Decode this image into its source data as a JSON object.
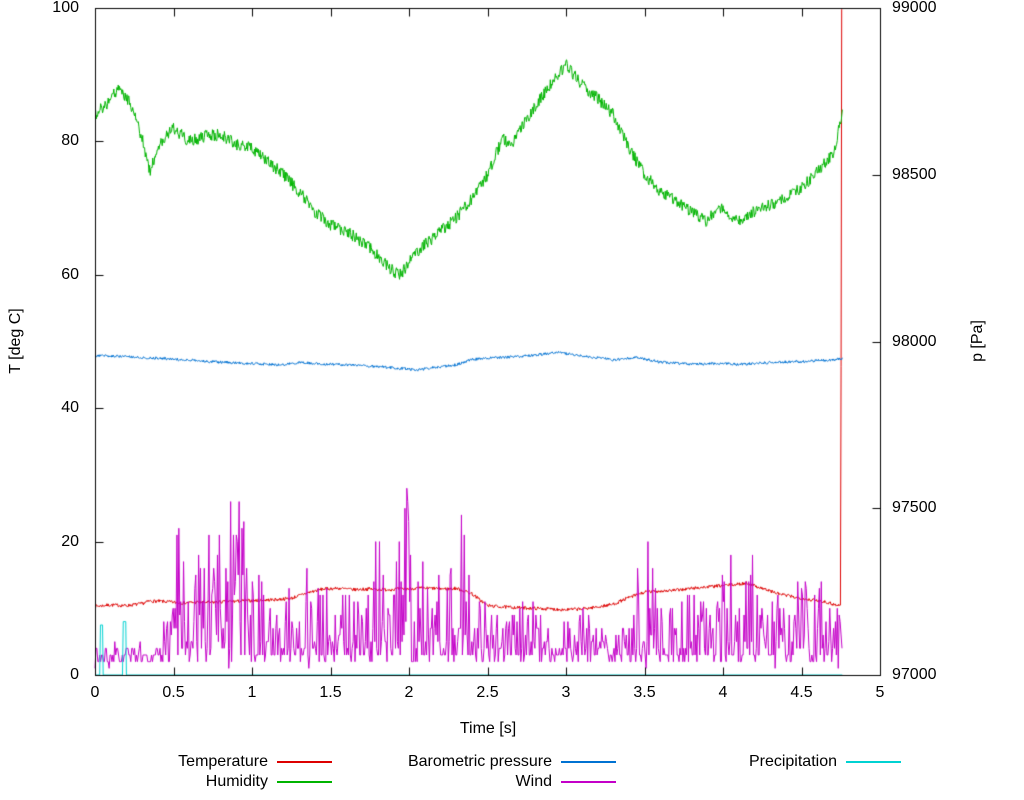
{
  "chart_data": {
    "type": "line",
    "title": "",
    "xlabel": "Time [s]",
    "ylabel": "T [deg C]",
    "y2label": "p [Pa]",
    "xlim": [
      0,
      5
    ],
    "ylim": [
      0,
      100
    ],
    "y2lim": [
      97000,
      99000
    ],
    "grid": false,
    "legend_position": "below-plot",
    "xtick_values": [
      0,
      0.5,
      1,
      1.5,
      2,
      2.5,
      3,
      3.5,
      4,
      4.5,
      5
    ],
    "xtick_labels": [
      "0",
      "0.5",
      "1",
      "1.5",
      "2",
      "2.5",
      "3",
      "3.5",
      "4",
      "4.5",
      "5"
    ],
    "ytick_values": [
      0,
      20,
      40,
      60,
      80,
      100
    ],
    "ytick_labels": [
      "0",
      "20",
      "40",
      "60",
      "80",
      "100"
    ],
    "y2tick_values": [
      97000,
      97500,
      98000,
      98500,
      99000
    ],
    "y2tick_labels": [
      "97000",
      "97500",
      "98000",
      "98500",
      "99000"
    ],
    "noise_seed": 7,
    "series": [
      {
        "name": "Temperature",
        "color": "#dd0000",
        "axis": "y1",
        "render": "noisy",
        "noise": 0.25,
        "keypoints": [
          [
            0,
            10.3
          ],
          [
            0.1,
            10.5
          ],
          [
            0.2,
            10.4
          ],
          [
            0.3,
            10.7
          ],
          [
            0.35,
            11.1
          ],
          [
            0.45,
            11.0
          ],
          [
            0.55,
            10.8
          ],
          [
            0.65,
            10.9
          ],
          [
            0.75,
            10.9
          ],
          [
            0.85,
            11.0
          ],
          [
            0.95,
            11.1
          ],
          [
            1.05,
            11.2
          ],
          [
            1.15,
            11.3
          ],
          [
            1.25,
            11.5
          ],
          [
            1.35,
            12.3
          ],
          [
            1.45,
            12.9
          ],
          [
            1.55,
            13.0
          ],
          [
            1.65,
            12.8
          ],
          [
            1.75,
            12.9
          ],
          [
            1.85,
            12.8
          ],
          [
            1.95,
            12.9
          ],
          [
            2.05,
            13.0
          ],
          [
            2.15,
            13.0
          ],
          [
            2.25,
            12.9
          ],
          [
            2.3,
            13.0
          ],
          [
            2.4,
            12.2
          ],
          [
            2.5,
            10.4
          ],
          [
            2.6,
            10.2
          ],
          [
            2.7,
            10.1
          ],
          [
            2.8,
            10.0
          ],
          [
            2.9,
            9.9
          ],
          [
            3.0,
            9.8
          ],
          [
            3.1,
            9.9
          ],
          [
            3.2,
            10.2
          ],
          [
            3.3,
            10.6
          ],
          [
            3.4,
            11.6
          ],
          [
            3.5,
            12.4
          ],
          [
            3.6,
            12.6
          ],
          [
            3.7,
            12.7
          ],
          [
            3.8,
            13.0
          ],
          [
            3.9,
            13.2
          ],
          [
            4.0,
            13.4
          ],
          [
            4.1,
            13.6
          ],
          [
            4.15,
            13.8
          ],
          [
            4.25,
            13.0
          ],
          [
            4.35,
            12.2
          ],
          [
            4.45,
            11.7
          ],
          [
            4.55,
            11.3
          ],
          [
            4.65,
            11.0
          ],
          [
            4.72,
            10.5
          ],
          [
            4.75,
            10.4
          ],
          [
            4.755,
            100
          ],
          [
            4.76,
            100
          ]
        ]
      },
      {
        "name": "Humidity",
        "color": "#00b400",
        "axis": "y1",
        "render": "noisy",
        "noise": 0.9,
        "keypoints": [
          [
            0,
            84
          ],
          [
            0.07,
            85.5
          ],
          [
            0.15,
            88
          ],
          [
            0.22,
            86
          ],
          [
            0.3,
            80.5
          ],
          [
            0.35,
            75.5
          ],
          [
            0.42,
            80
          ],
          [
            0.5,
            82
          ],
          [
            0.6,
            80
          ],
          [
            0.7,
            80.8
          ],
          [
            0.8,
            81
          ],
          [
            0.9,
            79.5
          ],
          [
            1.0,
            79
          ],
          [
            1.1,
            77
          ],
          [
            1.2,
            75
          ],
          [
            1.3,
            72.5
          ],
          [
            1.4,
            69.5
          ],
          [
            1.5,
            67.5
          ],
          [
            1.6,
            66.5
          ],
          [
            1.7,
            65
          ],
          [
            1.8,
            63
          ],
          [
            1.9,
            60.5
          ],
          [
            1.95,
            60
          ],
          [
            2.0,
            62
          ],
          [
            2.1,
            64.5
          ],
          [
            2.2,
            66.5
          ],
          [
            2.3,
            68.5
          ],
          [
            2.4,
            71.5
          ],
          [
            2.5,
            75
          ],
          [
            2.55,
            78
          ],
          [
            2.6,
            80.5
          ],
          [
            2.65,
            79
          ],
          [
            2.7,
            81.5
          ],
          [
            2.8,
            85
          ],
          [
            2.9,
            88.5
          ],
          [
            3.0,
            91.5
          ],
          [
            3.1,
            88.5
          ],
          [
            3.2,
            86.5
          ],
          [
            3.3,
            84
          ],
          [
            3.4,
            79
          ],
          [
            3.5,
            75
          ],
          [
            3.6,
            72.5
          ],
          [
            3.7,
            71
          ],
          [
            3.8,
            69.5
          ],
          [
            3.9,
            68
          ],
          [
            3.95,
            69.5
          ],
          [
            4.0,
            70
          ],
          [
            4.1,
            68
          ],
          [
            4.2,
            69.5
          ],
          [
            4.3,
            70.5
          ],
          [
            4.4,
            71.5
          ],
          [
            4.5,
            73
          ],
          [
            4.6,
            75.5
          ],
          [
            4.7,
            78
          ],
          [
            4.76,
            84
          ]
        ]
      },
      {
        "name": "Barometric pressure",
        "color": "#0072d2",
        "axis": "y2",
        "render": "noisy",
        "noise": 4,
        "keypoints": [
          [
            0,
            97958
          ],
          [
            0.2,
            97955
          ],
          [
            0.4,
            97950
          ],
          [
            0.6,
            97944
          ],
          [
            0.8,
            97938
          ],
          [
            1.0,
            97934
          ],
          [
            1.2,
            97930
          ],
          [
            1.3,
            97937
          ],
          [
            1.45,
            97933
          ],
          [
            1.6,
            97930
          ],
          [
            1.8,
            97925
          ],
          [
            2.0,
            97917
          ],
          [
            2.05,
            97914
          ],
          [
            2.15,
            97922
          ],
          [
            2.3,
            97930
          ],
          [
            2.4,
            97946
          ],
          [
            2.5,
            97950
          ],
          [
            2.7,
            97955
          ],
          [
            2.85,
            97962
          ],
          [
            2.95,
            97968
          ],
          [
            3.05,
            97960
          ],
          [
            3.2,
            97951
          ],
          [
            3.3,
            97945
          ],
          [
            3.45,
            97952
          ],
          [
            3.6,
            97938
          ],
          [
            3.8,
            97932
          ],
          [
            4.0,
            97934
          ],
          [
            4.1,
            97931
          ],
          [
            4.3,
            97937
          ],
          [
            4.5,
            97940
          ],
          [
            4.7,
            97945
          ],
          [
            4.76,
            97948
          ]
        ]
      },
      {
        "name": "Wind",
        "color": "#c400c8",
        "axis": "y1",
        "render": "spiky",
        "base": 2.5,
        "noise": 2.5,
        "keypoints": [
          [
            0,
            1
          ],
          [
            0.42,
            1
          ],
          [
            0.5,
            20
          ],
          [
            0.55,
            22
          ],
          [
            0.62,
            13
          ],
          [
            0.7,
            18
          ],
          [
            0.75,
            26
          ],
          [
            0.82,
            16
          ],
          [
            0.9,
            31
          ],
          [
            0.95,
            22
          ],
          [
            1.0,
            14
          ],
          [
            1.1,
            13
          ],
          [
            1.2,
            11
          ],
          [
            1.3,
            13
          ],
          [
            1.4,
            16
          ],
          [
            1.5,
            10
          ],
          [
            1.6,
            14
          ],
          [
            1.7,
            22
          ],
          [
            1.8,
            18
          ],
          [
            1.9,
            13
          ],
          [
            2.0,
            27
          ],
          [
            2.1,
            22
          ],
          [
            2.2,
            12
          ],
          [
            2.25,
            25
          ],
          [
            2.35,
            25
          ],
          [
            2.45,
            10
          ],
          [
            2.55,
            7
          ],
          [
            2.65,
            8
          ],
          [
            2.75,
            10
          ],
          [
            2.85,
            5
          ],
          [
            2.95,
            5
          ],
          [
            3.05,
            7
          ],
          [
            3.15,
            9
          ],
          [
            3.25,
            5
          ],
          [
            3.35,
            5
          ],
          [
            3.45,
            14
          ],
          [
            3.5,
            21
          ],
          [
            3.6,
            10
          ],
          [
            3.7,
            11
          ],
          [
            3.8,
            12
          ],
          [
            3.9,
            18
          ],
          [
            4.0,
            14
          ],
          [
            4.1,
            16
          ],
          [
            4.2,
            18
          ],
          [
            4.3,
            10
          ],
          [
            4.4,
            10
          ],
          [
            4.5,
            12
          ],
          [
            4.6,
            16
          ],
          [
            4.7,
            10
          ],
          [
            4.76,
            8
          ]
        ]
      },
      {
        "name": "Precipitation",
        "color": "#00d2d2",
        "axis": "y1",
        "render": "plain",
        "noise": 0,
        "keypoints": [
          [
            0,
            0
          ],
          [
            0.03,
            0
          ],
          [
            0.035,
            7.5
          ],
          [
            0.048,
            7.5
          ],
          [
            0.052,
            0
          ],
          [
            0.175,
            0
          ],
          [
            0.18,
            8
          ],
          [
            0.196,
            8
          ],
          [
            0.2,
            0
          ],
          [
            4.76,
            0
          ]
        ]
      }
    ]
  }
}
